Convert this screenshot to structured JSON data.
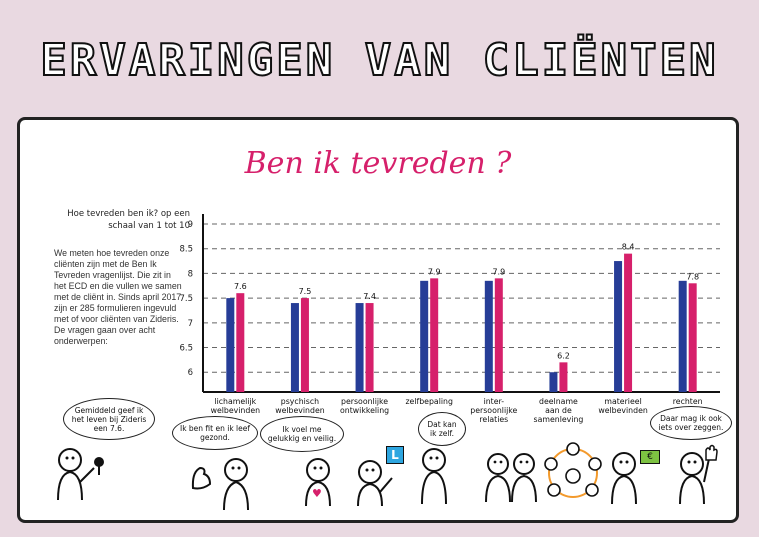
{
  "header": {
    "title": "ERVARINGEN VAN CLIËNTEN"
  },
  "panel": {
    "question": "Hoe tevreden ben ik? op een schaal van 1 tot 10",
    "intro": "We meten hoe tevreden onze cliënten zijn met de Ben Ik Tevreden vragenlijst. Die zit in het ECD en die vullen we samen met de cliënt in. Sinds april 2017 zijn er 285 formulieren ingevuld met of voor cliënten van Zideris. De vragen gaan over acht onderwerpen:"
  },
  "chart_data": {
    "type": "bar",
    "title": "Ben ik tevreden ?",
    "categories": [
      "lichamelijk welbevinden",
      "psychisch welbevinden",
      "persoonlijke ontwikkeling",
      "zelfbepaling",
      "inter- persoonlijke relaties",
      "deelname aan de samenleving",
      "materieel welbevinden",
      "rechten"
    ],
    "series": [
      {
        "values": [
          7.5,
          7.4,
          7.4,
          7.85,
          7.85,
          6.0,
          8.25,
          7.85
        ],
        "color": "#263d97"
      },
      {
        "values": [
          7.6,
          7.5,
          7.4,
          7.9,
          7.9,
          6.2,
          8.4,
          7.8
        ],
        "color": "#d6206b"
      }
    ],
    "data_labels": [
      "7.6",
      "7.5",
      "7.4",
      "7.9",
      "7.9",
      "6.2",
      "8.4",
      "7.8"
    ],
    "yticks": [
      "6",
      "6.5",
      "7",
      "7.5",
      "8",
      "8.5",
      "9"
    ],
    "ylim": [
      5.6,
      9
    ],
    "grid": true
  },
  "bubbles": [
    "Gemiddeld geef ik het leven bij Zideris een 7.6.",
    "Ik ben fit en ik leef gezond.",
    "Ik voel me gelukkig en veilig.",
    "Dat kan ik zelf.",
    "Daar mag ik ook iets over zeggen."
  ],
  "icons": [
    "microphone-icon",
    "muscle-arm-icon",
    "heart-icon",
    "learner-plate-icon",
    "people-network-icon",
    "money-note-icon",
    "raised-hand-icon"
  ],
  "colors": {
    "bar_blue": "#263d97",
    "bar_pink": "#d6206b",
    "background": "#e9d9e1"
  },
  "misc": {
    "learner_plate_letter": "L",
    "money_symbol": "€"
  }
}
